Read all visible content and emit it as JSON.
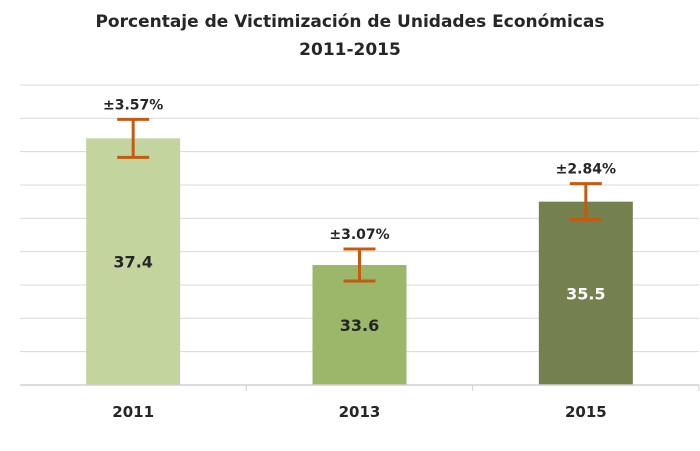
{
  "chart_data": {
    "type": "bar",
    "title": "Porcentaje de Victimización de Unidades Económicas",
    "subtitle": "2011-2015",
    "categories": [
      "2011",
      "2013",
      "2015"
    ],
    "values": [
      37.4,
      33.6,
      35.5
    ],
    "value_labels": [
      "37.4",
      "33.6",
      "35.5"
    ],
    "error_labels": [
      "±3.57%",
      "±3.07%",
      "±2.84%"
    ],
    "error_extent": [
      0.57,
      0.48,
      0.54
    ],
    "bar_colors": [
      "#c3d49f",
      "#9bb76a",
      "#75804f"
    ],
    "value_label_colors": [
      "#262626",
      "#262626",
      "#ffffff"
    ],
    "error_bar_color": "#c55a11",
    "xlabel": "",
    "ylabel": "",
    "ylim": [
      30,
      39
    ],
    "y_tick_labels_shown": false,
    "grid": true,
    "legend": "none"
  }
}
